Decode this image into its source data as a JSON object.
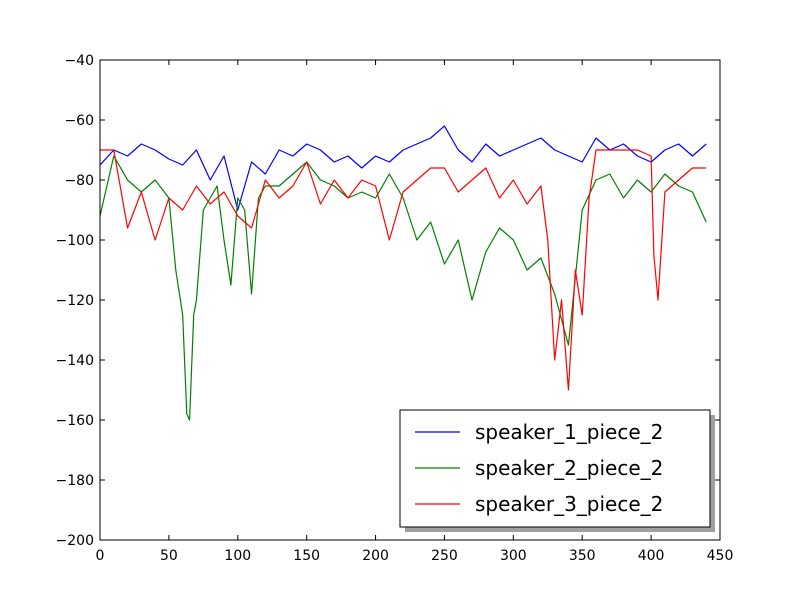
{
  "chart_data": {
    "type": "line",
    "title": "",
    "xlabel": "",
    "ylabel": "",
    "xlim": [
      0,
      450
    ],
    "ylim": [
      -200,
      -40
    ],
    "xticks": [
      0,
      50,
      100,
      150,
      200,
      250,
      300,
      350,
      400,
      450
    ],
    "yticks": [
      -200,
      -180,
      -160,
      -140,
      -120,
      -100,
      -80,
      -60,
      -40
    ],
    "grid": false,
    "legend_position": "lower-right",
    "series": [
      {
        "name": "speaker_1_piece_2",
        "color": "#0000ff",
        "x": [
          0,
          10,
          20,
          30,
          40,
          50,
          60,
          70,
          80,
          90,
          100,
          110,
          120,
          130,
          140,
          150,
          160,
          170,
          180,
          190,
          200,
          210,
          220,
          230,
          240,
          250,
          260,
          270,
          280,
          290,
          300,
          310,
          320,
          330,
          340,
          350,
          360,
          370,
          380,
          390,
          400,
          410,
          420,
          430,
          440
        ],
        "y": [
          -75,
          -70,
          -72,
          -68,
          -70,
          -73,
          -75,
          -70,
          -80,
          -72,
          -90,
          -74,
          -78,
          -70,
          -72,
          -68,
          -70,
          -74,
          -72,
          -76,
          -72,
          -74,
          -70,
          -68,
          -66,
          -62,
          -70,
          -74,
          -68,
          -72,
          -70,
          -68,
          -66,
          -70,
          -72,
          -74,
          -66,
          -70,
          -68,
          -72,
          -74,
          -70,
          -68,
          -72,
          -68
        ]
      },
      {
        "name": "speaker_2_piece_2",
        "color": "#008000",
        "x": [
          0,
          10,
          20,
          30,
          40,
          50,
          55,
          60,
          63,
          65,
          68,
          70,
          75,
          80,
          85,
          90,
          95,
          100,
          105,
          110,
          115,
          120,
          130,
          140,
          150,
          160,
          170,
          180,
          190,
          200,
          210,
          220,
          230,
          240,
          250,
          260,
          270,
          280,
          290,
          300,
          310,
          320,
          330,
          340,
          350,
          360,
          370,
          380,
          390,
          400,
          410,
          420,
          430,
          440
        ],
        "y": [
          -92,
          -72,
          -80,
          -84,
          -80,
          -86,
          -110,
          -125,
          -158,
          -160,
          -125,
          -120,
          -90,
          -86,
          -82,
          -100,
          -115,
          -86,
          -90,
          -118,
          -86,
          -82,
          -82,
          -78,
          -74,
          -80,
          -82,
          -86,
          -84,
          -86,
          -78,
          -86,
          -100,
          -94,
          -108,
          -100,
          -120,
          -104,
          -96,
          -100,
          -110,
          -106,
          -118,
          -135,
          -90,
          -80,
          -78,
          -86,
          -80,
          -84,
          -78,
          -82,
          -84,
          -94
        ]
      },
      {
        "name": "speaker_3_piece_2",
        "color": "#ff0000",
        "x": [
          0,
          10,
          20,
          30,
          40,
          50,
          60,
          70,
          80,
          90,
          100,
          110,
          120,
          130,
          140,
          150,
          160,
          170,
          180,
          190,
          200,
          210,
          220,
          230,
          240,
          250,
          260,
          270,
          280,
          290,
          300,
          310,
          320,
          325,
          330,
          335,
          340,
          345,
          350,
          355,
          360,
          370,
          380,
          390,
          400,
          402,
          405,
          410,
          420,
          430,
          440
        ],
        "y": [
          -70,
          -70,
          -96,
          -84,
          -100,
          -86,
          -90,
          -82,
          -88,
          -84,
          -92,
          -96,
          -80,
          -86,
          -82,
          -74,
          -88,
          -80,
          -86,
          -80,
          -82,
          -100,
          -84,
          -80,
          -76,
          -76,
          -84,
          -80,
          -76,
          -86,
          -80,
          -88,
          -82,
          -100,
          -140,
          -120,
          -150,
          -110,
          -125,
          -86,
          -70,
          -70,
          -70,
          -70,
          -72,
          -105,
          -120,
          -84,
          -80,
          -76,
          -76
        ]
      }
    ]
  }
}
